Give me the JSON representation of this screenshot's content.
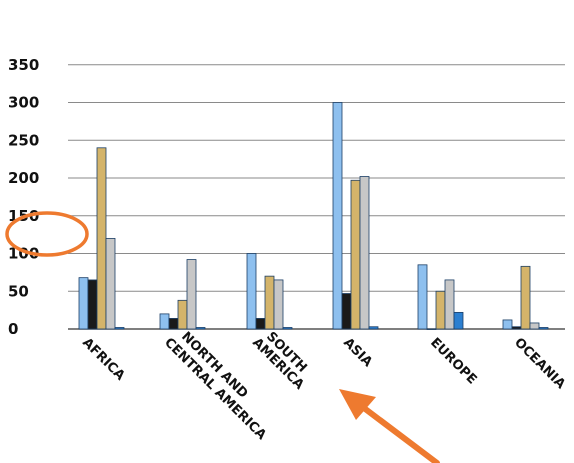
{
  "chart_data": {
    "type": "bar",
    "title": "",
    "xlabel": "",
    "ylabel": "",
    "ylim": [
      0,
      350
    ],
    "yticks": [
      0,
      50,
      100,
      150,
      200,
      250,
      300,
      350
    ],
    "grid": true,
    "legend": "none",
    "categories": [
      [
        "AFRICA"
      ],
      [
        "CENTRAL AMERICA",
        "NORTH AND"
      ],
      [
        "AMERICA",
        "SOUTH"
      ],
      [
        "ASIA"
      ],
      [
        "EUROPE"
      ],
      [
        "OCEANIA"
      ]
    ],
    "series": [
      {
        "color": "#8ec0ef",
        "values": [
          68,
          20,
          100,
          300,
          85,
          12
        ]
      },
      {
        "color": "#1a1a1a",
        "values": [
          65,
          14,
          14,
          47,
          0,
          3
        ]
      },
      {
        "color": "#d4b46a",
        "values": [
          240,
          38,
          70,
          197,
          50,
          83
        ]
      },
      {
        "color": "#c7c7c7",
        "values": [
          120,
          92,
          65,
          202,
          65,
          8
        ]
      },
      {
        "color": "#2c7fd0",
        "values": [
          2,
          2,
          2,
          3,
          22,
          2
        ]
      }
    ]
  },
  "annotations": {
    "highlight_color": "#ee7a2f"
  }
}
